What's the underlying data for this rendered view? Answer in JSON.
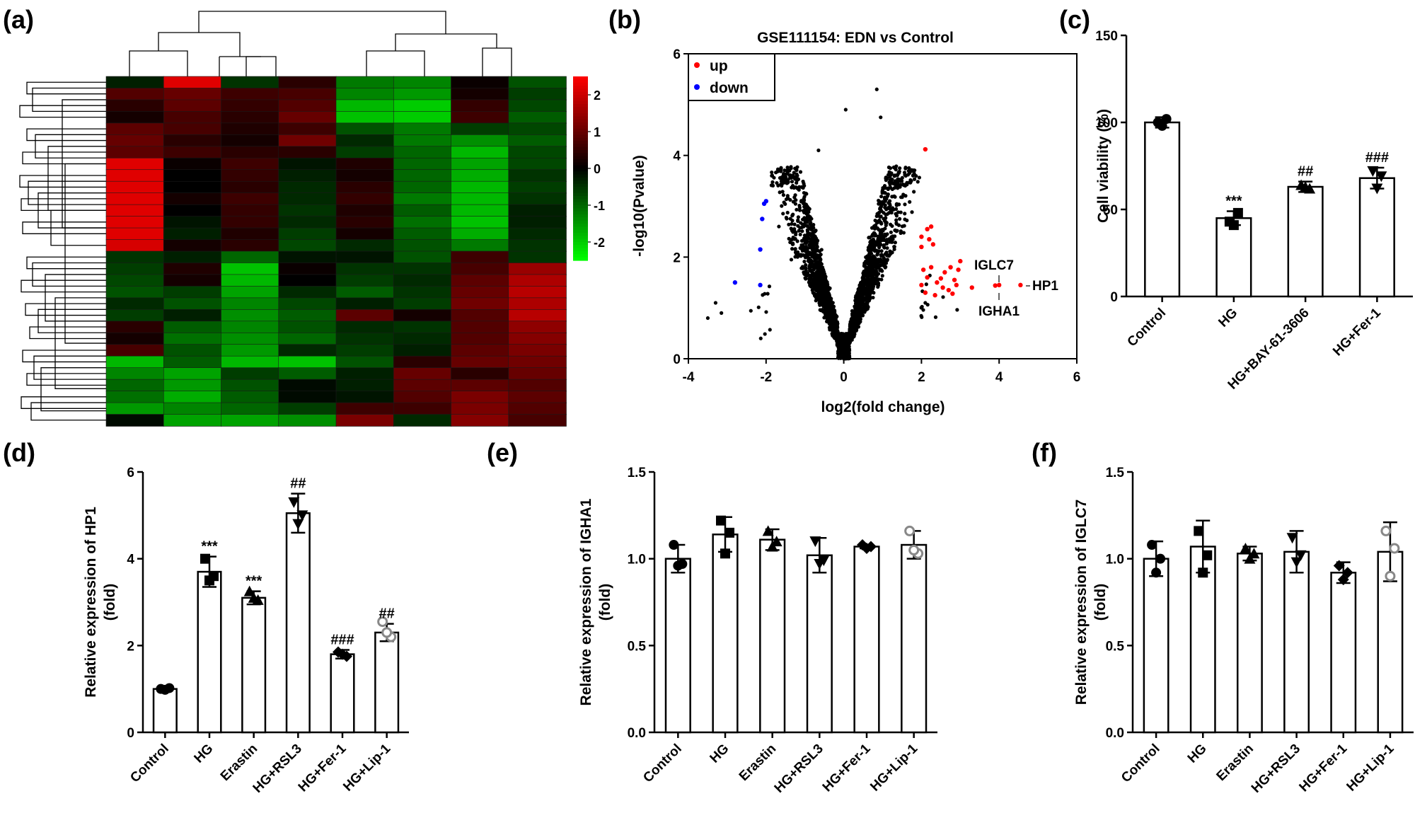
{
  "panels": {
    "a": {
      "label": "(a)"
    },
    "b": {
      "label": "(b)"
    },
    "c": {
      "label": "(c)"
    },
    "d": {
      "label": "(d)"
    },
    "e": {
      "label": "(e)"
    },
    "f": {
      "label": "(f)"
    }
  },
  "chart_data": [
    {
      "id": "a",
      "type": "heatmap",
      "title": "",
      "n_rows": 30,
      "n_cols": 8,
      "colorbar": {
        "min": -2.5,
        "max": 2.5,
        "ticks": [
          "2",
          "1",
          "0",
          "-1",
          "-2"
        ],
        "low_color": "#00ff00",
        "mid_color": "#000000",
        "high_color": "#ff0000"
      },
      "values": [
        [
          -0.3,
          2.2,
          -0.5,
          0.4,
          -1.2,
          -1.3,
          0.1,
          -0.8
        ],
        [
          0.8,
          1.0,
          0.6,
          0.7,
          -1.3,
          -1.5,
          0.2,
          -0.6
        ],
        [
          0.4,
          0.9,
          0.5,
          0.8,
          -1.8,
          -2.0,
          0.5,
          -0.7
        ],
        [
          0.2,
          0.7,
          0.4,
          1.0,
          -1.9,
          -2.0,
          0.6,
          -0.9
        ],
        [
          0.9,
          0.7,
          0.3,
          0.6,
          -0.8,
          -1.2,
          -0.6,
          -0.7
        ],
        [
          1.0,
          0.4,
          0.2,
          1.1,
          -0.4,
          -1.2,
          -1.4,
          -0.9
        ],
        [
          0.9,
          0.6,
          0.4,
          0.4,
          -0.6,
          -1.0,
          -1.8,
          -0.7
        ],
        [
          2.2,
          0.1,
          0.6,
          -0.2,
          0.3,
          -1.0,
          -1.6,
          -0.7
        ],
        [
          2.2,
          0.0,
          0.5,
          -0.3,
          0.2,
          -1.0,
          -1.7,
          -0.5
        ],
        [
          2.2,
          0.0,
          0.4,
          -0.4,
          0.4,
          -1.0,
          -1.8,
          -0.6
        ],
        [
          2.2,
          0.2,
          0.6,
          -0.4,
          0.5,
          -1.2,
          -1.8,
          -0.5
        ],
        [
          2.2,
          0.0,
          0.5,
          -0.5,
          0.3,
          -0.9,
          -1.8,
          -0.3
        ],
        [
          2.2,
          -0.2,
          0.5,
          -0.4,
          0.4,
          -1.1,
          -1.9,
          -0.3
        ],
        [
          2.2,
          -0.3,
          0.3,
          -0.6,
          0.2,
          -0.9,
          -1.7,
          -0.4
        ],
        [
          2.1,
          0.2,
          0.4,
          -0.7,
          -0.4,
          -0.8,
          -1.2,
          -0.5
        ],
        [
          -0.5,
          -0.3,
          -1.0,
          -0.2,
          -0.2,
          -0.8,
          0.6,
          -0.5
        ],
        [
          -0.6,
          0.3,
          -1.9,
          0.1,
          -0.5,
          -0.5,
          0.7,
          1.5
        ],
        [
          -0.7,
          0.2,
          -1.8,
          0.0,
          -0.6,
          -0.4,
          0.9,
          1.7
        ],
        [
          -0.8,
          -0.6,
          -1.6,
          -0.4,
          -0.9,
          -0.5,
          1.0,
          1.8
        ],
        [
          -0.4,
          -0.8,
          -1.3,
          -0.7,
          -0.3,
          -0.6,
          1.1,
          1.7
        ],
        [
          -0.6,
          -0.3,
          -1.4,
          -0.9,
          0.9,
          0.2,
          0.8,
          1.8
        ],
        [
          0.4,
          -0.9,
          -1.3,
          -0.8,
          -0.4,
          -0.5,
          0.8,
          1.4
        ],
        [
          0.2,
          -1.1,
          -1.4,
          -1.0,
          -0.5,
          -0.4,
          0.8,
          1.3
        ],
        [
          0.7,
          -0.8,
          -1.5,
          -0.4,
          -0.6,
          -0.3,
          0.9,
          1.2
        ],
        [
          -1.8,
          -0.9,
          -1.8,
          -1.9,
          -0.8,
          0.4,
          1.0,
          1.1
        ],
        [
          -1.3,
          -1.6,
          -0.6,
          -0.9,
          -0.3,
          1.0,
          0.4,
          1.0
        ],
        [
          -1.0,
          -1.5,
          -0.8,
          -0.1,
          -0.3,
          0.9,
          0.9,
          0.8
        ],
        [
          -1.1,
          -1.7,
          -0.9,
          -0.1,
          -0.2,
          0.8,
          1.2,
          0.9
        ],
        [
          -1.5,
          -1.3,
          -1.0,
          -0.6,
          0.6,
          0.6,
          1.2,
          0.8
        ],
        [
          -0.1,
          -1.6,
          -1.6,
          -1.4,
          1.2,
          -0.4,
          1.3,
          0.7
        ]
      ]
    },
    {
      "id": "b",
      "type": "scatter",
      "title": "GSE111154: EDN vs Control",
      "xlabel": "log2(fold change)",
      "ylabel": "-log10(Pvalue)",
      "xlim": [
        -4,
        6
      ],
      "ylim": [
        0,
        6
      ],
      "xticks": [
        "-4",
        "-2",
        "0",
        "2",
        "4",
        "6"
      ],
      "yticks": [
        "0",
        "2",
        "4",
        "6"
      ],
      "legend": [
        {
          "name": "up",
          "color": "#ff0000"
        },
        {
          "name": "down",
          "color": "#0000ff"
        }
      ],
      "background_color": "#000000",
      "background_points": 2600,
      "up_points": [
        [
          2.1,
          4.12
        ],
        [
          2.0,
          2.4
        ],
        [
          2.15,
          2.55
        ],
        [
          2.25,
          2.6
        ],
        [
          2.2,
          2.35
        ],
        [
          2.0,
          2.2
        ],
        [
          2.3,
          2.25
        ],
        [
          2.05,
          1.75
        ],
        [
          2.15,
          1.6
        ],
        [
          2.25,
          1.8
        ],
        [
          2.4,
          1.5
        ],
        [
          2.0,
          1.45
        ],
        [
          2.6,
          1.7
        ],
        [
          2.75,
          1.8
        ],
        [
          2.85,
          1.55
        ],
        [
          2.95,
          1.75
        ],
        [
          2.7,
          1.35
        ],
        [
          2.9,
          1.45
        ],
        [
          3.0,
          1.92
        ],
        [
          2.5,
          1.58
        ],
        [
          2.1,
          1.3
        ],
        [
          2.35,
          1.25
        ],
        [
          2.55,
          1.4
        ],
        [
          2.8,
          1.28
        ],
        [
          3.3,
          1.4
        ],
        [
          3.9,
          1.44
        ],
        [
          4.0,
          1.45
        ],
        [
          4.55,
          1.45
        ]
      ],
      "down_points": [
        [
          -2.0,
          3.1
        ],
        [
          -2.05,
          3.05
        ],
        [
          -2.1,
          2.75
        ],
        [
          -2.15,
          2.15
        ],
        [
          -2.8,
          1.5
        ],
        [
          -2.15,
          1.45
        ]
      ],
      "annotations": [
        "IGLC7",
        "HP1",
        "IGHA1"
      ],
      "extreme_points": [
        [
          0.85,
          5.3
        ],
        [
          0.95,
          4.75
        ],
        [
          0.05,
          4.9
        ],
        [
          -0.65,
          4.1
        ],
        [
          1.2,
          3.75
        ],
        [
          -1.25,
          2.15
        ],
        [
          -1.35,
          1.95
        ],
        [
          -3.3,
          1.1
        ],
        [
          -3.15,
          0.9
        ],
        [
          -3.5,
          0.8
        ]
      ]
    },
    {
      "id": "c",
      "type": "bar",
      "categories": [
        "Control",
        "HG",
        "HG+BAY-61-3606",
        "HG+Fer-1"
      ],
      "values": [
        100,
        45,
        63,
        68
      ],
      "errors": [
        3,
        4,
        3,
        6
      ],
      "points": [
        [
          100,
          102,
          98
        ],
        [
          43,
          48,
          41
        ],
        [
          64,
          62,
          63
        ],
        [
          72,
          69,
          62
        ]
      ],
      "markers": [
        "circle",
        "square",
        "triangle",
        "triangle-down"
      ],
      "significance": [
        "",
        "***",
        "##",
        "###"
      ],
      "ylabel": "Cell viability (%)",
      "ylim": [
        0,
        150
      ],
      "yticks": [
        "0",
        "50",
        "100",
        "150"
      ]
    },
    {
      "id": "d",
      "type": "bar",
      "categories": [
        "Control",
        "HG",
        "Erastin",
        "HG+RSL3",
        "HG+Fer-1",
        "HG+Lip-1"
      ],
      "values": [
        1.0,
        3.7,
        3.1,
        5.05,
        1.8,
        2.3
      ],
      "errors": [
        0.03,
        0.35,
        0.15,
        0.45,
        0.1,
        0.2
      ],
      "points": [
        [
          1.0,
          1.02,
          0.98
        ],
        [
          4.0,
          3.6,
          3.5
        ],
        [
          3.25,
          3.05,
          3.1
        ],
        [
          5.3,
          5.0,
          4.8
        ],
        [
          1.85,
          1.75,
          1.8
        ],
        [
          2.55,
          2.2,
          2.3
        ]
      ],
      "markers": [
        "circle",
        "square",
        "triangle",
        "triangle-down",
        "diamond",
        "circle-open"
      ],
      "significance": [
        "",
        "***",
        "***",
        "##",
        "###",
        "##"
      ],
      "ylabel": "Relative expression of HP1",
      "ylabel_unit": "(fold)",
      "ylim": [
        0,
        6
      ],
      "yticks": [
        "0",
        "2",
        "4",
        "6"
      ]
    },
    {
      "id": "e",
      "type": "bar",
      "categories": [
        "Control",
        "HG",
        "Erastin",
        "HG+RSL3",
        "HG+Fer-1",
        "HG+Lip-1"
      ],
      "values": [
        1.0,
        1.14,
        1.11,
        1.02,
        1.07,
        1.08
      ],
      "errors": [
        0.08,
        0.1,
        0.06,
        0.1,
        0.01,
        0.08
      ],
      "points": [
        [
          1.08,
          0.97,
          0.96
        ],
        [
          1.22,
          1.15,
          1.03
        ],
        [
          1.16,
          1.1,
          1.07
        ],
        [
          1.1,
          0.99,
          0.97
        ],
        [
          1.08,
          1.07,
          1.06
        ],
        [
          1.16,
          1.03,
          1.05
        ]
      ],
      "markers": [
        "circle",
        "square",
        "triangle",
        "triangle-down",
        "diamond",
        "circle-open"
      ],
      "significance": [
        "",
        "",
        "",
        "",
        "",
        ""
      ],
      "ylabel": "Relative expression of IGHA1",
      "ylabel_unit": "(fold)",
      "ylim": [
        0,
        1.5
      ],
      "yticks": [
        "0.0",
        "0.5",
        "1.0",
        "1.5"
      ]
    },
    {
      "id": "f",
      "type": "bar",
      "categories": [
        "Control",
        "HG",
        "Erastin",
        "HG+RSL3",
        "HG+Fer-1",
        "HG+Lip-1"
      ],
      "values": [
        1.0,
        1.07,
        1.03,
        1.04,
        0.92,
        1.04
      ],
      "errors": [
        0.1,
        0.15,
        0.04,
        0.12,
        0.06,
        0.17
      ],
      "points": [
        [
          1.08,
          1.0,
          0.92
        ],
        [
          1.16,
          1.02,
          0.92
        ],
        [
          1.06,
          1.03,
          1.0
        ],
        [
          1.12,
          1.02,
          0.98
        ],
        [
          0.96,
          0.92,
          0.88
        ],
        [
          1.16,
          1.06,
          0.9
        ]
      ],
      "markers": [
        "circle",
        "square",
        "triangle",
        "triangle-down",
        "diamond",
        "circle-open"
      ],
      "significance": [
        "",
        "",
        "",
        "",
        "",
        ""
      ],
      "ylabel": "Relative expression of IGLC7",
      "ylabel_unit": "(fold)",
      "ylim": [
        0,
        1.5
      ],
      "yticks": [
        "0.0",
        "0.5",
        "1.0",
        "1.5"
      ]
    }
  ]
}
